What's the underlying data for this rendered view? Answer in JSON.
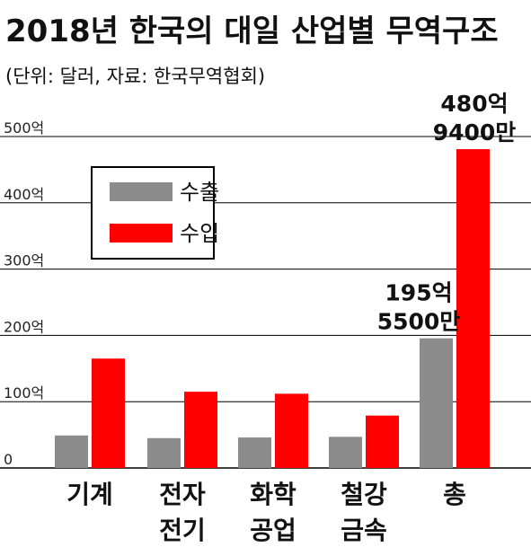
{
  "title": "2018년 한국의 대일 산업별 무역구조",
  "subtitle": "(단위: 달러, 자료: 한국무역협회)",
  "colors": {
    "export": "#8c8c8c",
    "import": "#ff0000",
    "grid": "#000000"
  },
  "chart_data": {
    "type": "bar",
    "title": "2018년 한국의 대일 산업별 무역구조",
    "subtitle": "(단위: 달러, 자료: 한국무역협회)",
    "xlabel": "",
    "ylabel": "",
    "ylim": [
      0,
      500
    ],
    "y_ticks": [
      0,
      100,
      200,
      300,
      400,
      500
    ],
    "y_tick_labels": [
      "0",
      "100억",
      "200억",
      "300억",
      "400억",
      "500억"
    ],
    "grid": true,
    "legend_position": "upper-left",
    "categories": [
      [
        "기계"
      ],
      [
        "전자",
        "전기"
      ],
      [
        "화학",
        "공업"
      ],
      [
        "철강",
        "금속"
      ],
      [
        "총"
      ]
    ],
    "series": [
      {
        "name": "수출",
        "color": "#8c8c8c",
        "values": [
          49,
          45,
          46,
          47,
          195.55
        ]
      },
      {
        "name": "수입",
        "color": "#ff0000",
        "values": [
          165,
          115,
          112,
          79,
          480.94
        ]
      }
    ],
    "annotations": [
      {
        "category_index": 4,
        "series_index": 0,
        "lines": [
          "195억",
          "5500만"
        ]
      },
      {
        "category_index": 4,
        "series_index": 1,
        "lines": [
          "480억",
          "9400만"
        ]
      }
    ]
  }
}
